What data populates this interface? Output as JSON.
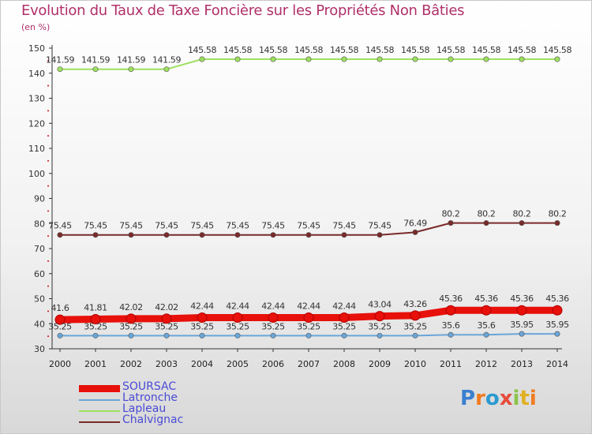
{
  "title": "Evolution du Taux de Taxe Foncière sur les Propriétés Non Bâties",
  "unit_label": "(en %)",
  "logo_text": "Proxiti",
  "chart_data": {
    "type": "line",
    "title": "Evolution du Taux de Taxe Foncière sur les Propriétés Non Bâties",
    "ylabel": "(en %)",
    "xlabel": "",
    "ylim": [
      30,
      150
    ],
    "y_ticks": [
      30,
      40,
      50,
      60,
      70,
      80,
      90,
      100,
      110,
      120,
      130,
      140,
      150
    ],
    "x": [
      "2000",
      "2001",
      "2002",
      "2003",
      "2004",
      "2005",
      "2006",
      "2007",
      "2008",
      "2009",
      "2010",
      "2011",
      "2012",
      "2013",
      "2014"
    ],
    "series": [
      {
        "name": "SOURSAC",
        "color": "#e8100a",
        "thick": true,
        "values": [
          41.6,
          41.81,
          42.02,
          42.02,
          42.44,
          42.44,
          42.44,
          42.44,
          42.44,
          43.04,
          43.26,
          45.36,
          45.36,
          45.36,
          45.36
        ],
        "labels": [
          "41.6",
          "41.81",
          "42.02",
          "42.02",
          "42.44",
          "42.44",
          "42.44",
          "42.44",
          "42.44",
          "43.04",
          "43.26",
          "45.36",
          "45.36",
          "45.36",
          "45.36"
        ]
      },
      {
        "name": "Latronche",
        "color": "#6aa6d8",
        "thick": false,
        "values": [
          35.25,
          35.25,
          35.25,
          35.25,
          35.25,
          35.25,
          35.25,
          35.25,
          35.25,
          35.25,
          35.25,
          35.6,
          35.6,
          35.95,
          35.95
        ],
        "labels": [
          "35.25",
          "35.25",
          "35.25",
          "35.25",
          "35.25",
          "35.25",
          "35.25",
          "35.25",
          "35.25",
          "35.25",
          "35.25",
          "35.6",
          "35.6",
          "35.95",
          "35.95"
        ]
      },
      {
        "name": "Lapleau",
        "color": "#9ee060",
        "thick": false,
        "values": [
          141.59,
          141.59,
          141.59,
          141.59,
          145.58,
          145.58,
          145.58,
          145.58,
          145.58,
          145.58,
          145.58,
          145.58,
          145.58,
          145.58,
          145.58
        ],
        "labels": [
          "141.59",
          "141.59",
          "141.59",
          "141.59",
          "145.58",
          "145.58",
          "145.58",
          "145.58",
          "145.58",
          "145.58",
          "145.58",
          "145.58",
          "145.58",
          "145.58",
          "145.58"
        ]
      },
      {
        "name": "Chalvignac",
        "color": "#7a2a2a",
        "thick": false,
        "values": [
          75.45,
          75.45,
          75.45,
          75.45,
          75.45,
          75.45,
          75.45,
          75.45,
          75.45,
          75.45,
          76.49,
          80.2,
          80.2,
          80.2,
          80.2
        ],
        "labels": [
          "75.45",
          "75.45",
          "75.45",
          "75.45",
          "75.45",
          "75.45",
          "75.45",
          "75.45",
          "75.45",
          "75.45",
          "76.49",
          "80.2",
          "80.2",
          "80.2",
          "80.2"
        ]
      }
    ]
  }
}
